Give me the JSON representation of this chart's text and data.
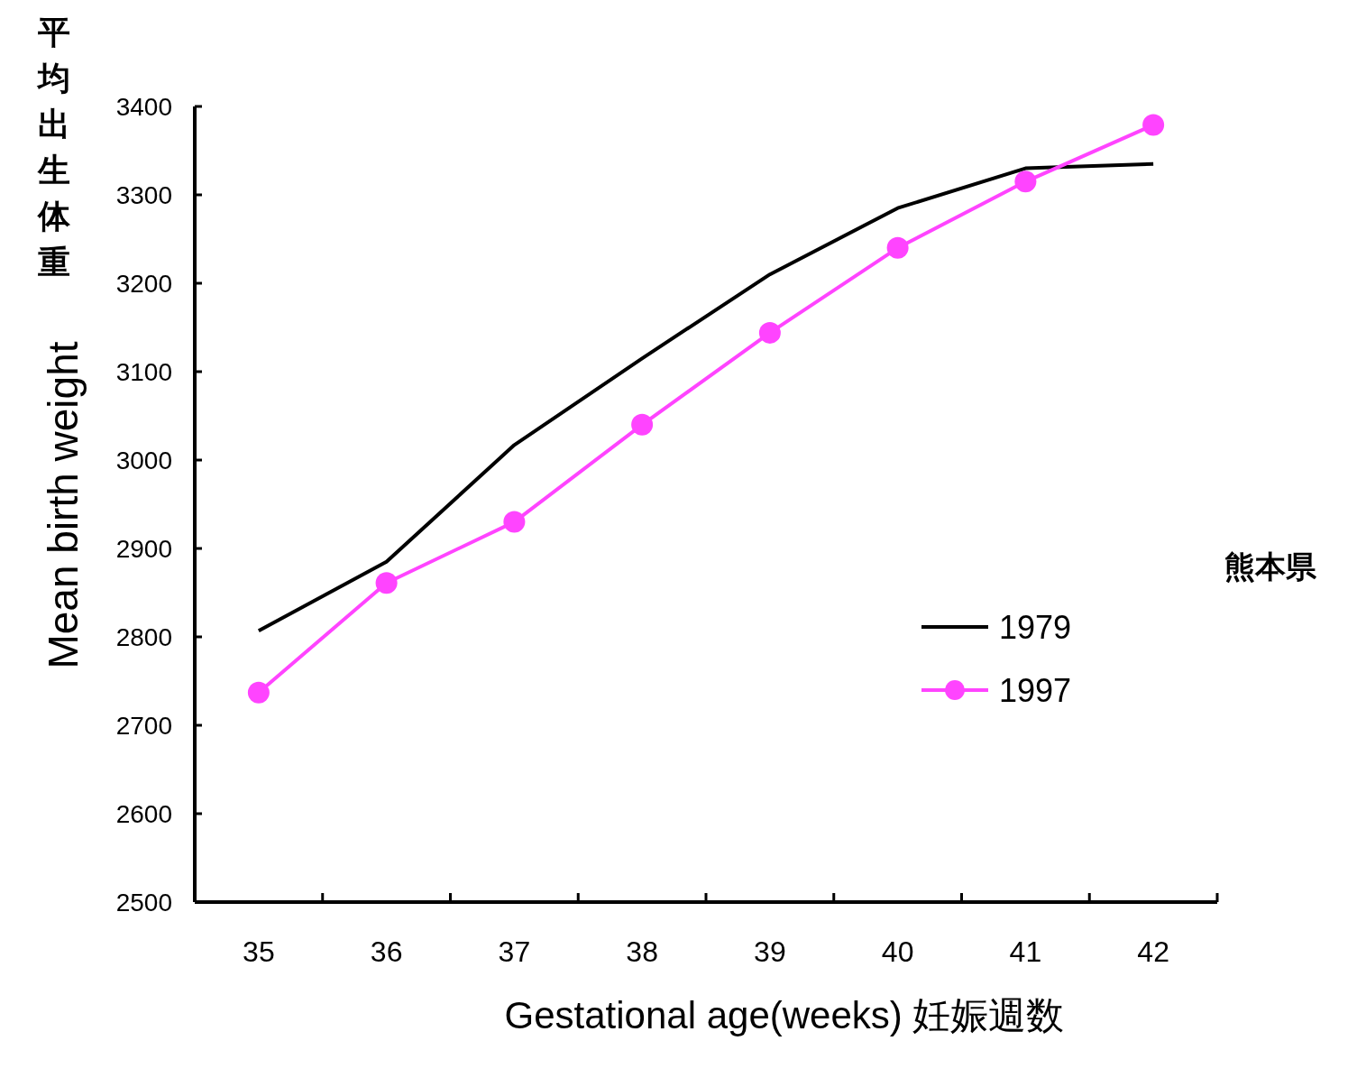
{
  "chart_data": {
    "type": "line",
    "ylabel": "Mean birth weight",
    "xlabel": "Gestational age(weeks)  妊娠週数",
    "annotations": [
      "平均出生体重",
      "熊本県"
    ],
    "categories": [
      "35",
      "36",
      "37",
      "38",
      "39",
      "40",
      "41",
      "42"
    ],
    "series": [
      {
        "name": "1979",
        "color": "#000000",
        "marker": "none",
        "values": [
          2807,
          2885,
          3017,
          3115,
          3210,
          3285,
          3330,
          3335
        ]
      },
      {
        "name": "1997",
        "color": "#ff44ff",
        "marker": "circle",
        "values": [
          2737,
          2861,
          2930,
          3040,
          3144,
          3240,
          3315,
          3379
        ]
      }
    ],
    "ylim": [
      2500,
      3400
    ],
    "yticks": [
      2500,
      2600,
      2700,
      2800,
      2900,
      3000,
      3100,
      3200,
      3300,
      3400
    ],
    "grid": false,
    "legend": "right"
  }
}
